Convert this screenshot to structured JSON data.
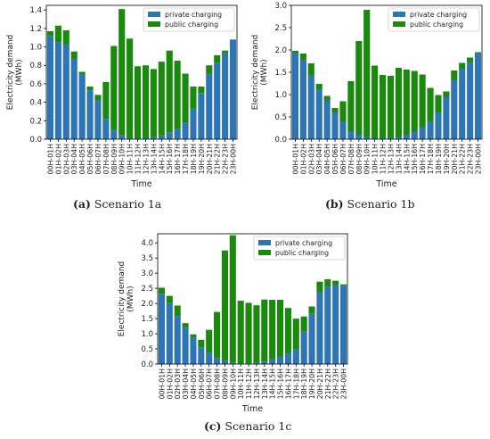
{
  "colors": {
    "private": "#2e75b6",
    "public": "#1a8a0d"
  },
  "captions": [
    {
      "label": "(a)",
      "text": " Scenario 1a"
    },
    {
      "label": "(b)",
      "text": " Scenario 1b"
    },
    {
      "label": "(c)",
      "text": " Scenario 1c"
    }
  ],
  "chart_data": [
    {
      "type": "bar",
      "stacked": true,
      "title": "",
      "xlabel": "Time",
      "ylabel": "Electricity demand\n(MWh)",
      "ylim": [
        0,
        1.45
      ],
      "yticks": [
        0.0,
        0.2,
        0.4,
        0.6,
        0.8,
        1.0,
        1.2,
        1.4
      ],
      "ytick_labels": [
        "0.0",
        "0.2",
        "0.4",
        "0.6",
        "0.8",
        "1.0",
        "1.2",
        "1.4"
      ],
      "legend_position": "top-right",
      "categories": [
        "00H-01H",
        "01H-02H",
        "02H-03H",
        "03H-04H",
        "04H-05H",
        "05H-06H",
        "06H-07H",
        "07H-08H",
        "08H-09H",
        "09H-10H",
        "10H-11H",
        "11H-12H",
        "12H-13H",
        "13H-14H",
        "14H-15H",
        "15H-16H",
        "16H-17H",
        "17H-18H",
        "18H-19H",
        "19H-20H",
        "20H-21H",
        "21H-22H",
        "22H-23H",
        "23H-00H"
      ],
      "series": [
        {
          "name": "private charging",
          "values": [
            1.12,
            1.05,
            1.03,
            0.87,
            0.7,
            0.53,
            0.42,
            0.22,
            0.1,
            0.04,
            0.01,
            0.01,
            0.01,
            0.02,
            0.04,
            0.07,
            0.11,
            0.18,
            0.33,
            0.5,
            0.71,
            0.83,
            0.93,
            1.08
          ]
        },
        {
          "name": "public charging",
          "values": [
            0.05,
            0.18,
            0.15,
            0.08,
            0.03,
            0.04,
            0.06,
            0.4,
            0.91,
            1.37,
            1.08,
            0.78,
            0.79,
            0.74,
            0.8,
            0.89,
            0.74,
            0.53,
            0.24,
            0.07,
            0.09,
            0.08,
            0.03,
            0.0
          ]
        }
      ]
    },
    {
      "type": "bar",
      "stacked": true,
      "title": "",
      "xlabel": "Time",
      "ylabel": "Electricity demand\n(MWh)",
      "ylim": [
        0,
        3.0
      ],
      "yticks": [
        0.0,
        0.5,
        1.0,
        1.5,
        2.0,
        2.5,
        3.0
      ],
      "ytick_labels": [
        "0.0",
        "0.5",
        "1.0",
        "1.5",
        "2.0",
        "2.5",
        "3.0"
      ],
      "legend_position": "top-right",
      "categories": [
        "00H-01H",
        "01H-02H",
        "02H-03H",
        "03H-04H",
        "04H-05H",
        "05H-06H",
        "06H-07H",
        "07H-08H",
        "08H-09H",
        "09H-10H",
        "10H-11H",
        "11H-12H",
        "12H-13H",
        "13H-14H",
        "14H-15H",
        "15H-16H",
        "16H-17H",
        "17H-18H",
        "18H-19H",
        "19H-20H",
        "20H-21H",
        "21H-22H",
        "22H-23H",
        "23H-00H"
      ],
      "series": [
        {
          "name": "private charging",
          "values": [
            1.93,
            1.78,
            1.43,
            1.12,
            0.87,
            0.6,
            0.4,
            0.18,
            0.1,
            0.05,
            0.02,
            0.02,
            0.03,
            0.05,
            0.1,
            0.17,
            0.27,
            0.4,
            0.6,
            0.95,
            1.33,
            1.57,
            1.73,
            1.93
          ]
        },
        {
          "name": "public charging",
          "values": [
            0.05,
            0.14,
            0.27,
            0.12,
            0.1,
            0.1,
            0.45,
            1.12,
            2.1,
            2.85,
            1.63,
            1.42,
            1.39,
            1.55,
            1.46,
            1.36,
            1.18,
            0.75,
            0.39,
            0.12,
            0.21,
            0.14,
            0.1,
            0.02
          ]
        }
      ]
    },
    {
      "type": "bar",
      "stacked": true,
      "title": "",
      "xlabel": "Time",
      "ylabel": "Electricity demand\n(MWh)",
      "ylim": [
        0,
        4.3
      ],
      "yticks": [
        0.0,
        0.5,
        1.0,
        1.5,
        2.0,
        2.5,
        3.0,
        3.5,
        4.0
      ],
      "ytick_labels": [
        "0.0",
        "0.5",
        "1.0",
        "1.5",
        "2.0",
        "2.5",
        "3.0",
        "3.5",
        "4.0"
      ],
      "legend_position": "top-right",
      "categories": [
        "00H-01H",
        "01H-02H",
        "02H-03H",
        "03H-04H",
        "04H-05H",
        "05H-06H",
        "06H-07H",
        "07H-08H",
        "08H-09H",
        "09H-10H",
        "10H-11H",
        "11H-12H",
        "12H-13H",
        "13H-14H",
        "14H-15H",
        "15H-16H",
        "16H-17H",
        "17H-18H",
        "18H-19H",
        "19H-20H",
        "20H-21H",
        "21H-22H",
        "22H-23H",
        "23H-00H"
      ],
      "series": [
        {
          "name": "private charging",
          "values": [
            2.32,
            2.02,
            1.58,
            1.2,
            0.88,
            0.55,
            0.38,
            0.2,
            0.1,
            0.05,
            0.02,
            0.02,
            0.04,
            0.08,
            0.15,
            0.25,
            0.35,
            0.5,
            1.07,
            1.67,
            2.37,
            2.55,
            2.62,
            2.58
          ]
        },
        {
          "name": "public charging",
          "values": [
            0.2,
            0.23,
            0.35,
            0.15,
            0.1,
            0.25,
            0.75,
            1.52,
            3.65,
            4.2,
            2.07,
            2.0,
            1.9,
            2.05,
            1.97,
            1.87,
            1.5,
            1.0,
            0.5,
            0.23,
            0.35,
            0.25,
            0.13,
            0.05
          ]
        }
      ]
    }
  ]
}
